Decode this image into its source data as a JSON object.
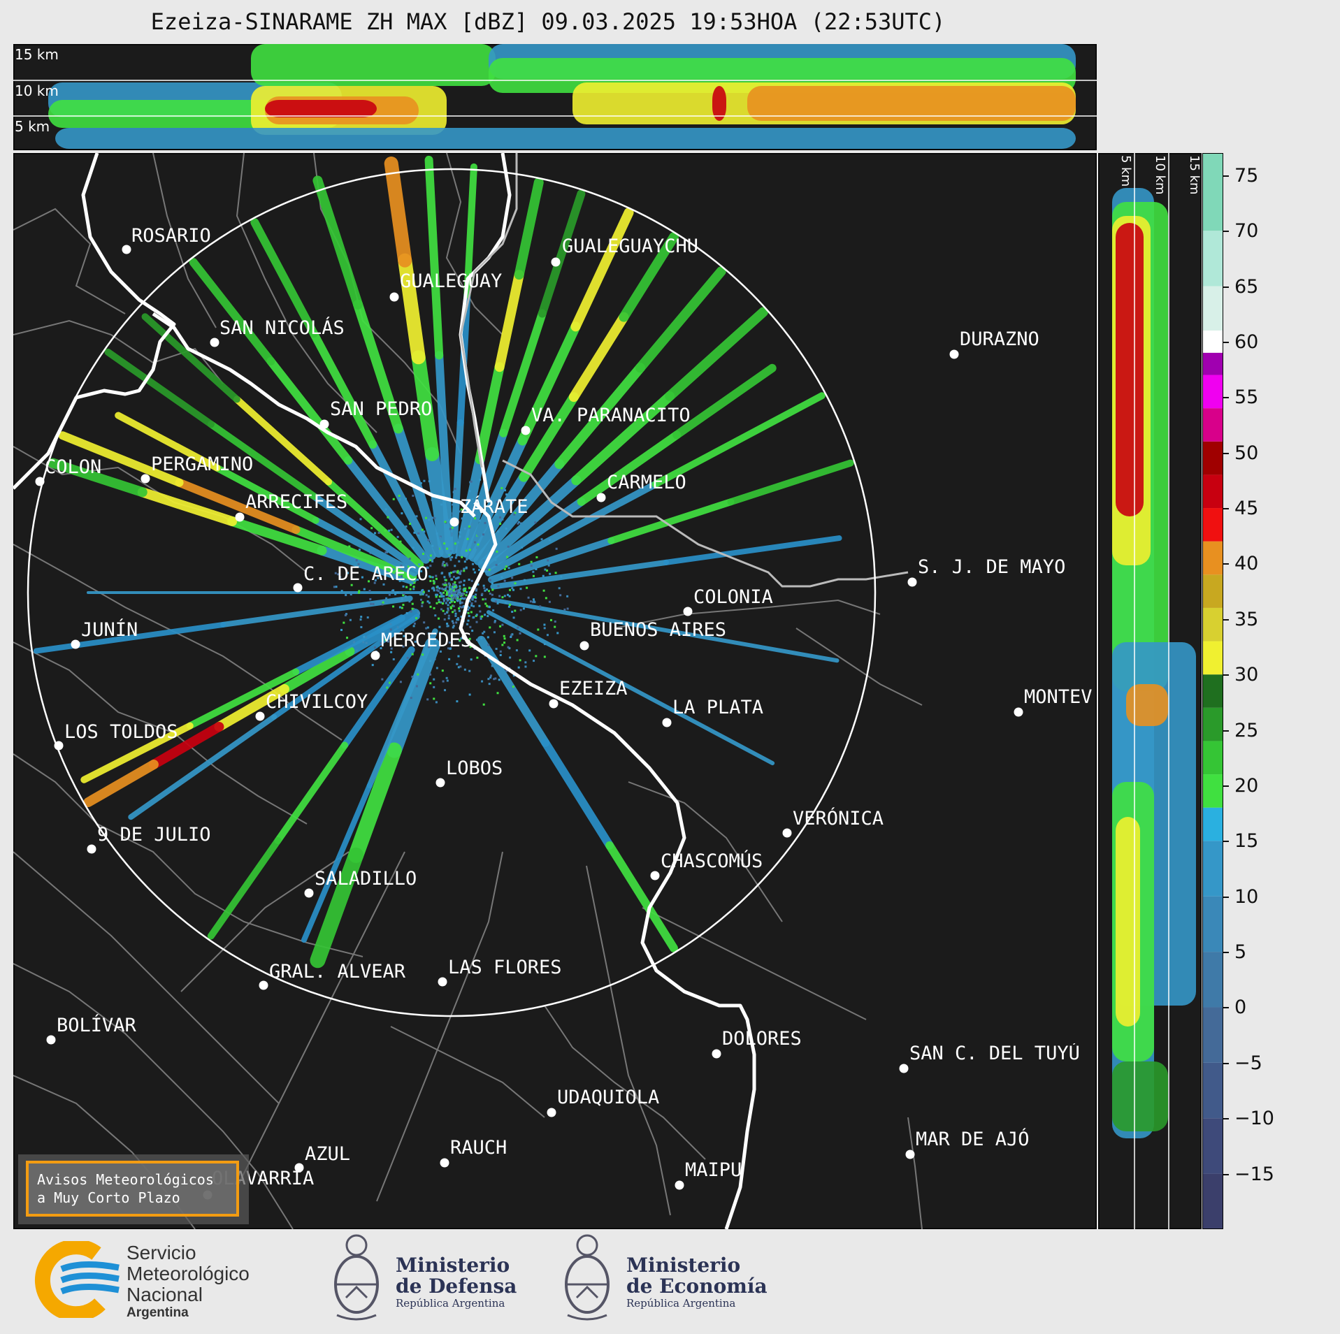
{
  "title": "Ezeiza-SINARAME ZH MAX [dBZ] 09.03.2025 19:53HOA (22:53UTC)",
  "top_panel": {
    "alt_labels": [
      "15 km",
      "10 km",
      "5 km"
    ]
  },
  "side_panel": {
    "alt_labels": [
      "5 km",
      "10 km",
      "15 km"
    ]
  },
  "colorbar": {
    "unit": "dBZ",
    "ticks": [
      "75",
      "70",
      "65",
      "60",
      "55",
      "50",
      "45",
      "40",
      "35",
      "30",
      "25",
      "20",
      "15",
      "10",
      "5",
      "0",
      "−5",
      "−10",
      "−15"
    ],
    "tick_values": [
      75,
      70,
      65,
      60,
      55,
      50,
      45,
      40,
      35,
      30,
      25,
      20,
      15,
      10,
      5,
      0,
      -5,
      -10,
      -15
    ],
    "range": [
      -20,
      77
    ],
    "segments": [
      {
        "from": -20,
        "to": -15,
        "color": "#3b3f6b"
      },
      {
        "from": -15,
        "to": -10,
        "color": "#3e4a7a"
      },
      {
        "from": -10,
        "to": -5,
        "color": "#415a8a"
      },
      {
        "from": -5,
        "to": 0,
        "color": "#446a98"
      },
      {
        "from": 0,
        "to": 5,
        "color": "#3f7aa8"
      },
      {
        "from": 5,
        "to": 10,
        "color": "#3a88b8"
      },
      {
        "from": 10,
        "to": 15,
        "color": "#3597c8"
      },
      {
        "from": 15,
        "to": 18,
        "color": "#2ab0e0"
      },
      {
        "from": 18,
        "to": 21,
        "color": "#40e040"
      },
      {
        "from": 21,
        "to": 24,
        "color": "#35c535"
      },
      {
        "from": 24,
        "to": 27,
        "color": "#2a9a2a"
      },
      {
        "from": 27,
        "to": 30,
        "color": "#1f6f1f"
      },
      {
        "from": 30,
        "to": 33,
        "color": "#f0f030"
      },
      {
        "from": 33,
        "to": 36,
        "color": "#d8d030"
      },
      {
        "from": 36,
        "to": 39,
        "color": "#c8a820"
      },
      {
        "from": 39,
        "to": 42,
        "color": "#e89020"
      },
      {
        "from": 42,
        "to": 45,
        "color": "#f01010"
      },
      {
        "from": 45,
        "to": 48,
        "color": "#c80010"
      },
      {
        "from": 48,
        "to": 51,
        "color": "#a00000"
      },
      {
        "from": 51,
        "to": 54,
        "color": "#d8008a"
      },
      {
        "from": 54,
        "to": 57,
        "color": "#f000f0"
      },
      {
        "from": 57,
        "to": 59,
        "color": "#a000b0"
      },
      {
        "from": 59,
        "to": 61,
        "color": "#ffffff"
      },
      {
        "from": 61,
        "to": 65,
        "color": "#d8f0e8"
      },
      {
        "from": 65,
        "to": 70,
        "color": "#b0e8d8"
      },
      {
        "from": 70,
        "to": 77,
        "color": "#80d8b8"
      }
    ]
  },
  "cities": [
    {
      "name": "ROSARIO",
      "dot": true
    },
    {
      "name": "GUALEGUAYCHU",
      "dot": true
    },
    {
      "name": "GUALEGUAY",
      "dot": true
    },
    {
      "name": "SAN NICOLÁS",
      "dot": true
    },
    {
      "name": "DURAZNO",
      "dot": true
    },
    {
      "name": "SAN PEDRO",
      "dot": true
    },
    {
      "name": "VA. PARANACITO",
      "dot": true
    },
    {
      "name": "COLON",
      "dot": true
    },
    {
      "name": "PERGAMINO",
      "dot": true
    },
    {
      "name": "CARMELO",
      "dot": true
    },
    {
      "name": "ARRECIFES",
      "dot": true
    },
    {
      "name": "ZÁRATE",
      "dot": true
    },
    {
      "name": "S. J. DE MAYO",
      "dot": true
    },
    {
      "name": "C. DE ARECO",
      "dot": true
    },
    {
      "name": "COLONIA",
      "dot": true
    },
    {
      "name": "JUNÍN",
      "dot": true
    },
    {
      "name": "BUENOS AIRES",
      "dot": true
    },
    {
      "name": "MERCEDES",
      "dot": true
    },
    {
      "name": "EZEIZA",
      "dot": true
    },
    {
      "name": "MONTEV",
      "dot": true
    },
    {
      "name": "CHIVILCOY",
      "dot": true
    },
    {
      "name": "LA PLATA",
      "dot": true
    },
    {
      "name": "LOS TOLDOS",
      "dot": true
    },
    {
      "name": "LOBOS",
      "dot": true
    },
    {
      "name": "VERÓNICA",
      "dot": true
    },
    {
      "name": "9 DE JULIO",
      "dot": true
    },
    {
      "name": "CHASCOMÚS",
      "dot": true
    },
    {
      "name": "SALADILLO",
      "dot": true
    },
    {
      "name": "GRAL. ALVEAR",
      "dot": true
    },
    {
      "name": "LAS FLORES",
      "dot": true
    },
    {
      "name": "BOLÍVAR",
      "dot": true
    },
    {
      "name": "DOLORES",
      "dot": true
    },
    {
      "name": "SAN C. DEL TUYÚ",
      "dot": true
    },
    {
      "name": "UDAQUIOLA",
      "dot": true
    },
    {
      "name": "MAR DE AJÓ",
      "dot": true
    },
    {
      "name": "RAUCH",
      "dot": true
    },
    {
      "name": "AZUL",
      "dot": true
    },
    {
      "name": "OLAVARRÍA",
      "dot": true
    },
    {
      "name": "MAIPU",
      "dot": true
    }
  ],
  "avisos": {
    "line1": "Avisos Meteorológicos",
    "line2": "a Muy Corto Plazo"
  },
  "logos": {
    "smn": [
      "Servicio",
      "Meteorológico",
      "Nacional",
      "Argentina"
    ],
    "defensa": [
      "Ministerio",
      "de Defensa",
      "República Argentina"
    ],
    "economia": [
      "Ministerio",
      "de Economía",
      "República Argentina"
    ]
  },
  "colors": {
    "map_bg": "#1b1b1b",
    "coast": "#ffffff",
    "borders": "#777777",
    "accent_box": "#f39c12"
  }
}
